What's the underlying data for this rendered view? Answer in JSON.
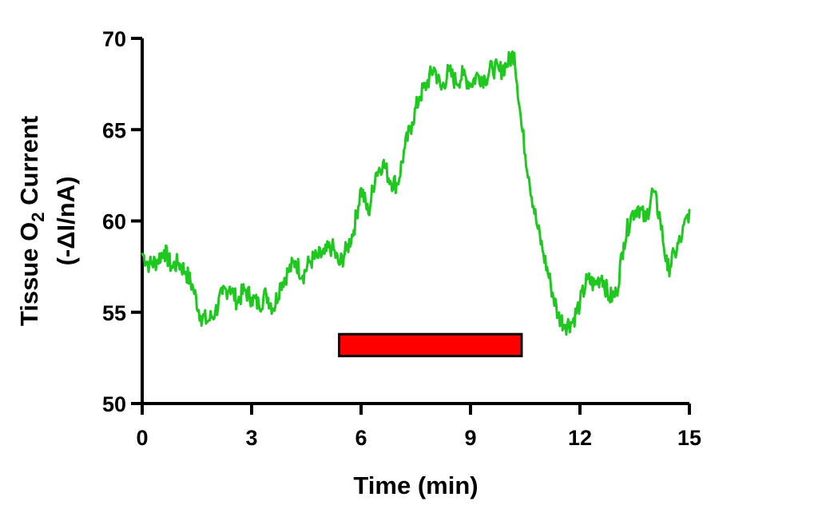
{
  "chart_data": {
    "type": "line",
    "xlabel": "Time (min)",
    "ylabel_line1_pre": "Tissue O",
    "ylabel_line1_sub": "2",
    "ylabel_line1_post": " Current",
    "ylabel_line2": "(-ΔI/nA)",
    "xlim": [
      0,
      15
    ],
    "ylim": [
      50,
      70
    ],
    "xticks": [
      0,
      3,
      6,
      9,
      12,
      15
    ],
    "yticks": [
      50,
      55,
      60,
      65,
      70
    ],
    "grid": false,
    "legend": "none",
    "series": [
      {
        "color": "#1ec81e",
        "x": [
          0,
          0.2,
          0.4,
          0.6,
          0.8,
          1.0,
          1.2,
          1.4,
          1.6,
          1.8,
          2.0,
          2.2,
          2.4,
          2.6,
          2.8,
          3.0,
          3.2,
          3.4,
          3.6,
          3.8,
          4.0,
          4.2,
          4.4,
          4.6,
          4.8,
          5.0,
          5.2,
          5.4,
          5.6,
          5.8,
          6.0,
          6.2,
          6.4,
          6.6,
          6.8,
          7.0,
          7.2,
          7.4,
          7.6,
          7.8,
          8.0,
          8.2,
          8.4,
          8.6,
          8.8,
          9.0,
          9.2,
          9.4,
          9.6,
          9.8,
          10.0,
          10.2,
          10.4,
          10.6,
          10.8,
          11.0,
          11.2,
          11.4,
          11.6,
          11.8,
          12.0,
          12.2,
          12.4,
          12.6,
          12.8,
          13.0,
          13.2,
          13.4,
          13.6,
          13.8,
          14.0,
          14.2,
          14.4,
          14.6,
          14.8,
          15.0
        ],
        "y": [
          58.2,
          57.6,
          57.8,
          58.4,
          57.5,
          57.7,
          57.2,
          56.3,
          54.8,
          54.5,
          55.0,
          56.0,
          56.4,
          55.6,
          56.2,
          55.8,
          55.4,
          56.0,
          55.2,
          56.6,
          57.2,
          57.8,
          57.0,
          57.8,
          58.0,
          58.2,
          58.6,
          57.6,
          58.4,
          59.5,
          61.8,
          60.4,
          62.6,
          63.2,
          62.2,
          62.0,
          64.0,
          65.4,
          66.8,
          67.5,
          68.4,
          67.2,
          68.2,
          67.6,
          68.0,
          67.5,
          68.0,
          67.8,
          68.4,
          68.2,
          68.6,
          69.2,
          65.2,
          62.4,
          60.0,
          58.2,
          56.5,
          54.8,
          54.3,
          54.5,
          55.5,
          56.8,
          56.5,
          57.0,
          55.8,
          56.0,
          58.8,
          60.3,
          60.8,
          60.0,
          61.7,
          60.1,
          57.3,
          58.2,
          59.2,
          60.6
        ]
      }
    ],
    "annotations": [
      {
        "kind": "bar",
        "x_start": 5.4,
        "x_end": 10.4,
        "y_low": 52.6,
        "y_high": 53.8,
        "fill": "#ff0000"
      }
    ]
  }
}
